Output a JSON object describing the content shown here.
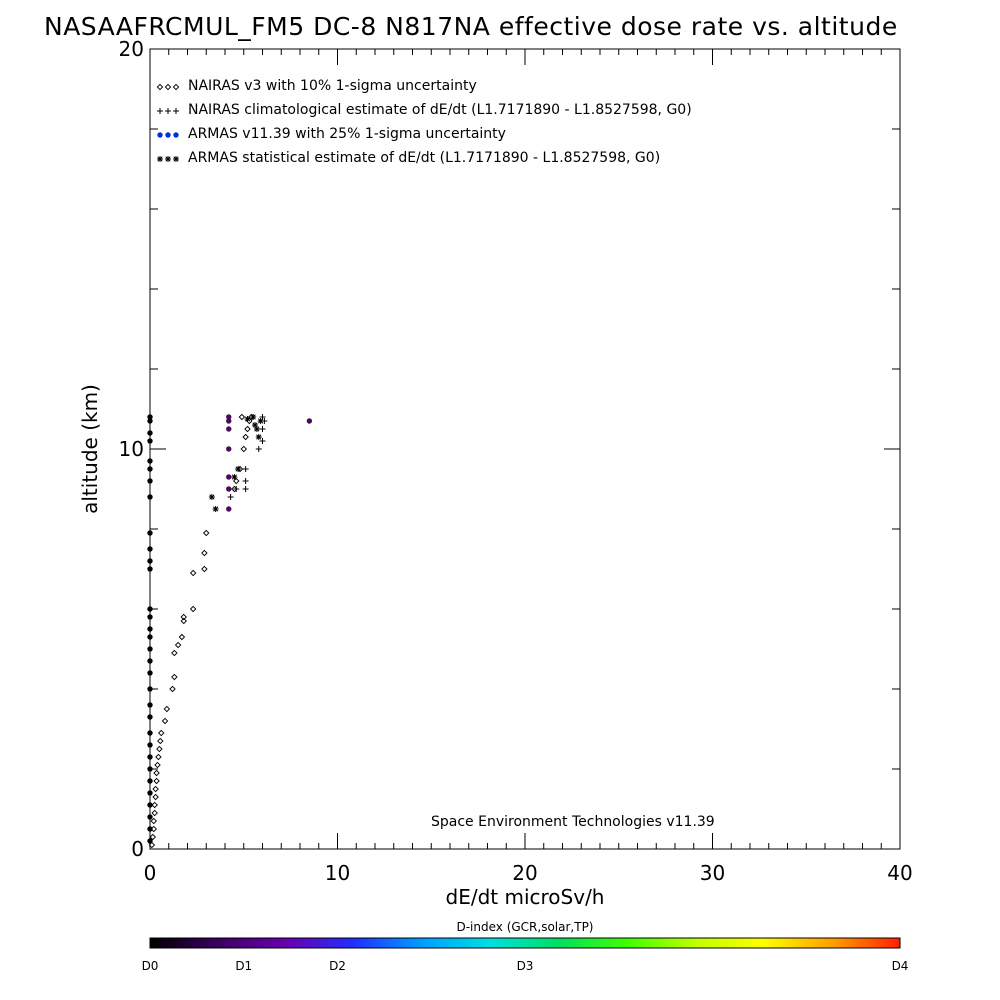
{
  "title": "NASAAFRCMUL_FM5 DC-8   N817NA effective dose rate vs. altitude",
  "credit": "Space Environment Technologies v11.39",
  "colorbar": {
    "title": "D-index (GCR,solar,TP)",
    "labels": [
      {
        "text": "D0",
        "value": 0
      },
      {
        "text": "D1",
        "value": 1
      },
      {
        "text": "D2",
        "value": 2
      },
      {
        "text": "D3",
        "value": 3
      },
      {
        "text": "D4",
        "value": 4
      }
    ],
    "stops": [
      "#000000",
      "#3a0060",
      "#6a00b0",
      "#2030ff",
      "#00a0ff",
      "#00e0e0",
      "#00e060",
      "#40ff00",
      "#c0ff00",
      "#ffff00",
      "#ffa000",
      "#ff2000"
    ],
    "label_positions": [
      0,
      0.125,
      0.25,
      0.5,
      1
    ]
  },
  "chart_data": {
    "type": "scatter",
    "xlabel": "dE/dt microSv/h",
    "ylabel": "altitude (km)",
    "xlim": [
      0,
      40
    ],
    "ylim": [
      0,
      20
    ],
    "x_ticks": [
      0,
      10,
      20,
      30,
      40
    ],
    "y_ticks": [
      0,
      10,
      20
    ],
    "legend_position": "top-left",
    "series": [
      {
        "name": "NAIRAS v3 with 10% 1-sigma uncertainty",
        "marker": "diamond",
        "color": "#000000",
        "points": [
          [
            0.1,
            0.1
          ],
          [
            0.15,
            0.3
          ],
          [
            0.2,
            0.5
          ],
          [
            0.2,
            0.7
          ],
          [
            0.25,
            0.9
          ],
          [
            0.25,
            1.1
          ],
          [
            0.3,
            1.3
          ],
          [
            0.3,
            1.5
          ],
          [
            0.35,
            1.7
          ],
          [
            0.35,
            1.9
          ],
          [
            0.4,
            2.1
          ],
          [
            0.45,
            2.3
          ],
          [
            0.5,
            2.5
          ],
          [
            0.55,
            2.7
          ],
          [
            0.6,
            2.9
          ],
          [
            0.8,
            3.2
          ],
          [
            0.9,
            3.5
          ],
          [
            1.2,
            4.0
          ],
          [
            1.3,
            4.3
          ],
          [
            1.3,
            4.9
          ],
          [
            1.5,
            5.1
          ],
          [
            1.7,
            5.3
          ],
          [
            1.8,
            5.7
          ],
          [
            1.8,
            5.8
          ],
          [
            2.3,
            6.0
          ],
          [
            2.3,
            6.9
          ],
          [
            2.9,
            7.0
          ],
          [
            2.9,
            7.4
          ],
          [
            3.0,
            7.9
          ],
          [
            4.5,
            9.0
          ],
          [
            4.6,
            9.2
          ],
          [
            4.8,
            9.5
          ],
          [
            5.0,
            10.0
          ],
          [
            5.1,
            10.3
          ],
          [
            5.2,
            10.5
          ],
          [
            5.3,
            10.7
          ],
          [
            4.9,
            10.8
          ],
          [
            5.4,
            10.8
          ]
        ]
      },
      {
        "name": "NAIRAS climatological estimate of dE/dt (L1.7171890 - L1.8527598, G0)",
        "marker": "plus",
        "color": "#000000",
        "points": [
          [
            4.3,
            8.8
          ],
          [
            4.6,
            9.0
          ],
          [
            5.1,
            9.2
          ],
          [
            5.1,
            9.5
          ],
          [
            5.1,
            9.0
          ],
          [
            5.8,
            10.0
          ],
          [
            6.0,
            10.2
          ],
          [
            6.0,
            10.5
          ],
          [
            6.1,
            10.7
          ],
          [
            6.0,
            10.8
          ],
          [
            5.5,
            10.8
          ],
          [
            5.6,
            10.6
          ]
        ]
      },
      {
        "name": "ARMAS v11.39 with 25% 1-sigma uncertainty",
        "marker": "dot",
        "color": "#0030e0",
        "points": [
          [
            0,
            0.2
          ],
          [
            0,
            0.5
          ],
          [
            0,
            0.8
          ],
          [
            0,
            1.1
          ],
          [
            0,
            1.4
          ],
          [
            0,
            1.7
          ],
          [
            0,
            2.0
          ],
          [
            0,
            2.3
          ],
          [
            0,
            2.6
          ],
          [
            0,
            2.9
          ],
          [
            0,
            3.3
          ],
          [
            0,
            3.6
          ],
          [
            0,
            4.0
          ],
          [
            0,
            4.4
          ],
          [
            0,
            4.7
          ],
          [
            0,
            5.0
          ],
          [
            0,
            5.3
          ],
          [
            0,
            5.5
          ],
          [
            0,
            5.8
          ],
          [
            0,
            6.0
          ],
          [
            0,
            7.0
          ],
          [
            0,
            7.2
          ],
          [
            0,
            7.5
          ],
          [
            0,
            7.9
          ],
          [
            0,
            8.8
          ],
          [
            0,
            9.2
          ],
          [
            0,
            9.5
          ],
          [
            0,
            9.7
          ],
          [
            0,
            10.2
          ],
          [
            0,
            10.4
          ],
          [
            0,
            10.7
          ],
          [
            0,
            10.8
          ],
          [
            4.2,
            8.5
          ],
          [
            4.2,
            9.0
          ],
          [
            4.2,
            9.3
          ],
          [
            4.2,
            10.0
          ],
          [
            4.2,
            10.5
          ],
          [
            4.2,
            10.7
          ],
          [
            4.2,
            10.8
          ],
          [
            8.5,
            10.7
          ]
        ]
      },
      {
        "name": "ARMAS statistical estimate of dE/dt (L1.7171890 - L1.8527598, G0)",
        "marker": "asterisk",
        "color": "#000000",
        "points": [
          [
            3.3,
            8.8
          ],
          [
            3.5,
            8.5
          ],
          [
            4.5,
            9.3
          ],
          [
            4.7,
            9.5
          ],
          [
            5.8,
            10.3
          ],
          [
            5.7,
            10.5
          ],
          [
            5.9,
            10.7
          ],
          [
            5.5,
            10.8
          ],
          [
            5.2,
            10.75
          ],
          [
            5.6,
            10.6
          ]
        ]
      }
    ]
  }
}
